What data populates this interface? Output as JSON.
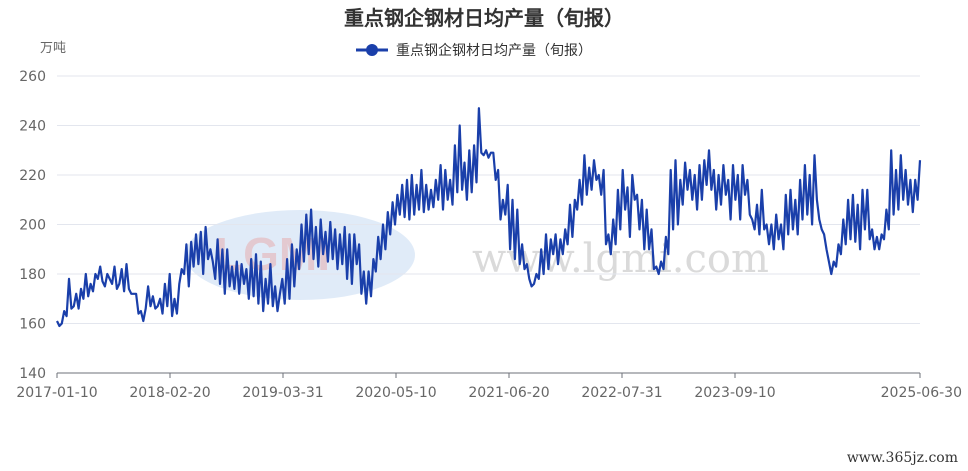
{
  "chart_data": {
    "type": "line",
    "title": "重点钢企钢材日均产量（旬报）",
    "ylabel": "万吨",
    "xlabel": "",
    "ylim": [
      140,
      260
    ],
    "yticks": [
      140,
      160,
      180,
      200,
      220,
      240,
      260
    ],
    "xticks": [
      "2017-01-10",
      "2018-02-20",
      "2019-03-31",
      "2020-05-10",
      "2021-06-20",
      "2022-07-31",
      "2023-09-10",
      "2025-06-30"
    ],
    "grid": "horizontal",
    "legend": "top-center",
    "color": "#1a3faa",
    "series": [
      {
        "name": "重点钢企钢材日均产量（旬报）",
        "values": [
          161,
          159,
          160,
          165,
          163,
          178,
          166,
          167,
          172,
          166,
          174,
          170,
          180,
          171,
          176,
          173,
          180,
          178,
          183,
          177,
          175,
          180,
          178,
          176,
          183,
          174,
          176,
          182,
          173,
          184,
          174,
          172,
          172,
          172,
          164,
          165,
          161,
          166,
          175,
          167,
          171,
          166,
          167,
          170,
          164,
          176,
          167,
          180,
          163,
          170,
          164,
          176,
          182,
          180,
          192,
          175,
          193,
          183,
          196,
          184,
          197,
          180,
          199,
          186,
          190,
          185,
          178,
          194,
          176,
          190,
          172,
          190,
          175,
          183,
          174,
          185,
          172,
          184,
          176,
          182,
          170,
          186,
          171,
          188,
          168,
          185,
          165,
          178,
          168,
          184,
          167,
          175,
          165,
          172,
          178,
          168,
          186,
          170,
          192,
          175,
          190,
          182,
          200,
          185,
          204,
          188,
          206,
          186,
          199,
          183,
          202,
          188,
          197,
          185,
          201,
          186,
          198,
          182,
          196,
          184,
          199,
          178,
          196,
          176,
          196,
          184,
          192,
          172,
          181,
          168,
          181,
          171,
          186,
          181,
          195,
          186,
          200,
          190,
          205,
          196,
          209,
          200,
          212,
          204,
          216,
          203,
          218,
          202,
          220,
          204,
          216,
          206,
          222,
          205,
          216,
          206,
          214,
          207,
          218,
          210,
          224,
          206,
          222,
          210,
          218,
          208,
          232,
          213,
          240,
          214,
          225,
          210,
          230,
          213,
          232,
          217,
          247,
          229,
          228,
          230,
          227,
          229,
          229,
          218,
          222,
          202,
          210,
          204,
          216,
          190,
          210,
          186,
          206,
          184,
          192,
          182,
          184,
          178,
          175,
          176,
          180,
          178,
          190,
          180,
          196,
          182,
          194,
          188,
          196,
          184,
          194,
          188,
          198,
          192,
          208,
          195,
          210,
          206,
          218,
          208,
          228,
          212,
          223,
          214,
          226,
          218,
          220,
          212,
          222,
          192,
          196,
          188,
          202,
          192,
          214,
          198,
          222,
          206,
          215,
          195,
          220,
          210,
          212,
          198,
          210,
          190,
          206,
          190,
          198,
          182,
          183,
          180,
          185,
          182,
          195,
          188,
          222,
          198,
          226,
          200,
          218,
          208,
          225,
          214,
          222,
          210,
          220,
          206,
          224,
          210,
          226,
          216,
          230,
          214,
          222,
          206,
          220,
          208,
          224,
          212,
          218,
          202,
          224,
          210,
          220,
          202,
          224,
          212,
          218,
          204,
          202,
          198,
          208,
          196,
          214,
          198,
          200,
          192,
          200,
          190,
          204,
          194,
          200,
          190,
          212,
          196,
          214,
          198,
          210,
          196,
          218,
          202,
          224,
          204,
          220,
          200,
          228,
          210,
          202,
          198,
          196,
          190,
          185,
          180,
          185,
          183,
          192,
          188,
          202,
          192,
          210,
          194,
          212,
          193,
          208,
          190,
          214,
          198,
          214,
          194,
          198,
          190,
          195,
          190,
          196,
          194,
          206,
          198,
          230,
          204,
          222,
          206,
          228,
          210,
          222,
          208,
          218,
          205,
          218,
          210,
          226
        ]
      }
    ]
  },
  "watermark": {
    "logo_text": "LGMI",
    "site_text": "www.lgmi.com"
  },
  "footer": {
    "source": "www.365jz.com"
  }
}
